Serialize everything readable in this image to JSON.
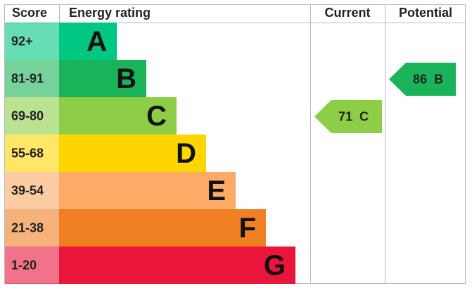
{
  "header": {
    "score": "Score",
    "rating": "Energy rating",
    "current": "Current",
    "potential": "Potential"
  },
  "bands": [
    {
      "score": "92+",
      "letter": "A",
      "color": "#00c781"
    },
    {
      "score": "81-91",
      "letter": "B",
      "color": "#19b459"
    },
    {
      "score": "69-80",
      "letter": "C",
      "color": "#8dce46"
    },
    {
      "score": "55-68",
      "letter": "D",
      "color": "#ffd500"
    },
    {
      "score": "39-54",
      "letter": "E",
      "color": "#fcaa65"
    },
    {
      "score": "21-38",
      "letter": "F",
      "color": "#ef8023"
    },
    {
      "score": "1-20",
      "letter": "G",
      "color": "#e9153b"
    }
  ],
  "current": {
    "value": 71,
    "band": "C"
  },
  "potential": {
    "value": 86,
    "band": "B"
  }
}
